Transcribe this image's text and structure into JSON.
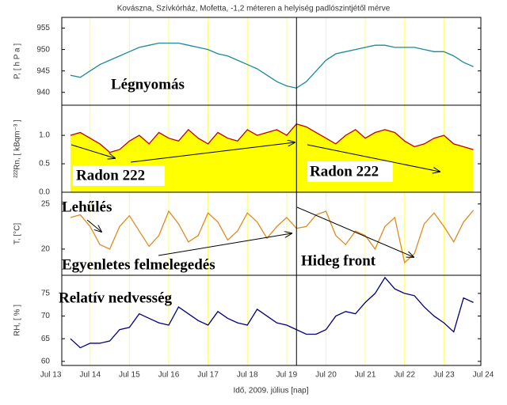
{
  "chart_data": [
    {
      "type": "line",
      "title": "Kovászna, Szívkórház, Mofetta, -1,2 méteren a helyiség padlószintjétől mérve",
      "y_label": "P, [ h P a ]",
      "annotations": [
        "Légnyomás"
      ],
      "xlim": [
        13.28,
        23.94
      ],
      "ylim": [
        937,
        957.5
      ],
      "yticks": [
        940,
        945,
        950,
        955
      ],
      "grid": true,
      "grid_color": "#ffff66",
      "vline": 19.25,
      "x": [
        13.5,
        13.75,
        14,
        14.25,
        14.5,
        14.75,
        15,
        15.25,
        15.5,
        15.75,
        16,
        16.25,
        16.5,
        16.75,
        17,
        17.25,
        17.5,
        17.75,
        18,
        18.25,
        18.5,
        18.75,
        19,
        19.25,
        19.5,
        19.75,
        20,
        20.25,
        20.5,
        20.75,
        21,
        21.25,
        21.5,
        21.75,
        22,
        22.25,
        22.5,
        22.75,
        23,
        23.25,
        23.5,
        23.75
      ],
      "series": [
        {
          "color": "#1a8a9a",
          "values": [
            944,
            943.5,
            945,
            946.5,
            947.5,
            948.5,
            949.5,
            950.5,
            951,
            951.5,
            951.5,
            951.5,
            951,
            950.5,
            950,
            949,
            948.5,
            947.5,
            946.5,
            945.5,
            944,
            942.5,
            941.5,
            941,
            942.5,
            945,
            947.5,
            949,
            949.5,
            950,
            950.5,
            951,
            951,
            950.5,
            950.5,
            950.5,
            950,
            949.5,
            949.5,
            948.5,
            947,
            946
          ]
        }
      ]
    },
    {
      "type": "area",
      "y_label": "²²²Rn, [ kBqm⁻³ ]",
      "annotations": [
        "Radon 222",
        "Radon 222"
      ],
      "xlim": [
        13.28,
        23.94
      ],
      "ylim": [
        0,
        1.53
      ],
      "yticks": [
        {
          "value": 0,
          "label": "0.0"
        },
        {
          "value": 0.5,
          "label": "0.5"
        },
        {
          "value": 1,
          "label": "1.0"
        }
      ],
      "grid": true,
      "grid_color": "#ffff66",
      "vline": 19.25,
      "fill": "#ffff00",
      "x": [
        13.5,
        13.75,
        14,
        14.25,
        14.5,
        14.75,
        15,
        15.25,
        15.5,
        15.75,
        16,
        16.25,
        16.5,
        16.75,
        17,
        17.25,
        17.5,
        17.75,
        18,
        18.25,
        18.5,
        18.75,
        19,
        19.25,
        19.5,
        19.75,
        20,
        20.25,
        20.5,
        20.75,
        21,
        21.25,
        21.5,
        21.75,
        22,
        22.25,
        22.5,
        22.75,
        23,
        23.25,
        23.5,
        23.75
      ],
      "series": [
        {
          "color": "#c00000",
          "values": [
            1.0,
            1.05,
            0.95,
            0.85,
            0.7,
            0.75,
            0.9,
            1.0,
            0.85,
            1.05,
            0.95,
            0.9,
            1.1,
            0.95,
            0.85,
            1.05,
            0.95,
            0.9,
            1.1,
            1.0,
            1.05,
            1.1,
            1.0,
            1.2,
            1.15,
            1.05,
            0.95,
            0.85,
            1.0,
            1.1,
            0.95,
            1.05,
            1.1,
            1.05,
            0.9,
            0.8,
            0.85,
            0.95,
            1.0,
            0.85,
            0.8,
            0.75
          ]
        }
      ]
    },
    {
      "type": "line",
      "y_label": "T, [°C]",
      "annotations": [
        "Lehűlés",
        "Egyenletes felmelegedés",
        "Hideg front"
      ],
      "xlim": [
        13.28,
        23.94
      ],
      "ylim": [
        17.1,
        26.3
      ],
      "yticks": [
        20,
        25
      ],
      "grid": true,
      "grid_color": "#ffff66",
      "vline": 19.25,
      "x": [
        13.5,
        13.75,
        14,
        14.25,
        14.5,
        14.75,
        15,
        15.25,
        15.5,
        15.75,
        16,
        16.25,
        16.5,
        16.75,
        17,
        17.25,
        17.5,
        17.75,
        18,
        18.25,
        18.5,
        18.75,
        19,
        19.25,
        19.5,
        19.75,
        20,
        20.25,
        20.5,
        20.75,
        21,
        21.25,
        21.5,
        21.75,
        22,
        22.25,
        22.5,
        22.75,
        23,
        23.25,
        23.5,
        23.75
      ],
      "series": [
        {
          "color": "#e08a20",
          "values": [
            23.5,
            23.8,
            22.5,
            20.5,
            20,
            22.5,
            23.7,
            22,
            20.3,
            21.5,
            24.2,
            22.8,
            20.8,
            21.5,
            24,
            23,
            21,
            22,
            24,
            23,
            21.2,
            22.5,
            23.5,
            22.3,
            22.5,
            23.8,
            24.2,
            21.5,
            20.5,
            22,
            21.5,
            20,
            22.5,
            23.5,
            18.5,
            19.5,
            22.8,
            24,
            22.5,
            20.8,
            23,
            24.3
          ]
        }
      ]
    },
    {
      "type": "line",
      "y_label": "RH, [ % ]",
      "annotations": [
        "Relatív nedvesség"
      ],
      "x_label": "Idő, 2009. július [nap]",
      "xlim": [
        13.28,
        23.94
      ],
      "ylim": [
        59.1,
        79
      ],
      "yticks": [
        60,
        65,
        70,
        75
      ],
      "grid": true,
      "grid_color": "#ffff66",
      "vline": 19.25,
      "xticks": [
        {
          "value": 13,
          "label": "Jul 13"
        },
        {
          "value": 14,
          "label": "Jul 14"
        },
        {
          "value": 15,
          "label": "Jul 15"
        },
        {
          "value": 16,
          "label": "Jul 16"
        },
        {
          "value": 17,
          "label": "Jul 17"
        },
        {
          "value": 18,
          "label": "Jul 18"
        },
        {
          "value": 19,
          "label": "Jul 19"
        },
        {
          "value": 20,
          "label": "Jul 20"
        },
        {
          "value": 21,
          "label": "Jul 21"
        },
        {
          "value": 22,
          "label": "Jul 22"
        },
        {
          "value": 23,
          "label": "Jul 23"
        },
        {
          "value": 24,
          "label": "Jul 24"
        }
      ],
      "x": [
        13.5,
        13.75,
        14,
        14.25,
        14.5,
        14.75,
        15,
        15.25,
        15.5,
        15.75,
        16,
        16.25,
        16.5,
        16.75,
        17,
        17.25,
        17.5,
        17.75,
        18,
        18.25,
        18.5,
        18.75,
        19,
        19.25,
        19.5,
        19.75,
        20,
        20.25,
        20.5,
        20.75,
        21,
        21.25,
        21.5,
        21.75,
        22,
        22.25,
        22.5,
        22.75,
        23,
        23.25,
        23.5,
        23.75
      ],
      "series": [
        {
          "color": "#000080",
          "values": [
            65,
            63,
            64,
            64,
            64.5,
            67,
            67.5,
            70.5,
            69.5,
            68.5,
            68,
            72,
            70.5,
            69,
            68,
            71,
            69.5,
            68.5,
            68,
            71.5,
            70,
            68.5,
            68,
            67,
            66,
            66,
            67,
            70,
            71,
            70.5,
            73,
            75,
            78.5,
            76,
            75,
            74.5,
            72,
            70,
            68.5,
            66.5,
            74,
            73
          ]
        }
      ]
    }
  ]
}
